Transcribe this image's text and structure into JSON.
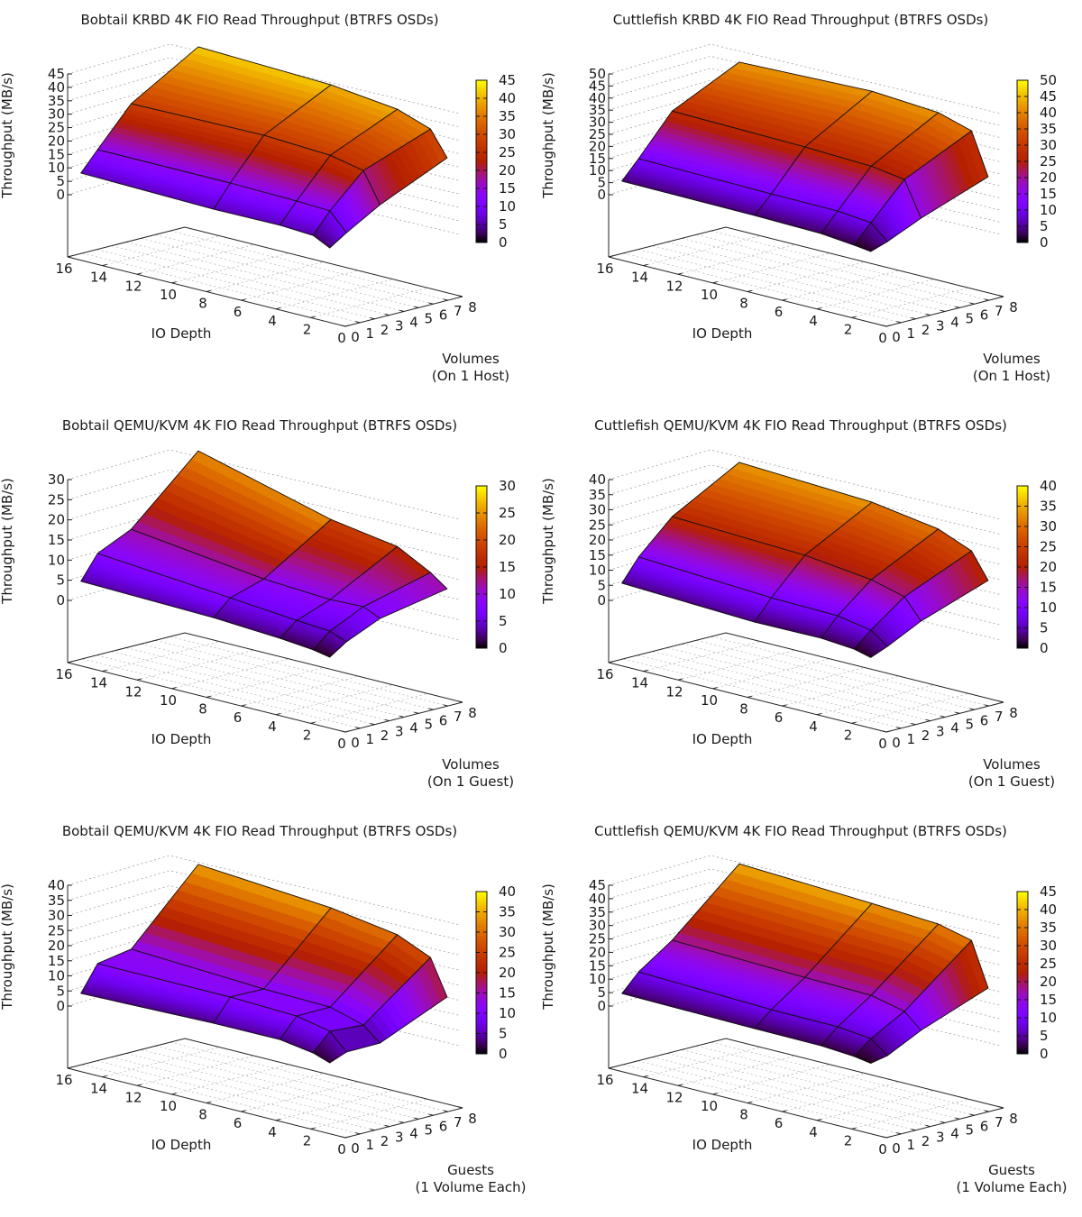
{
  "chart_data": [
    {
      "type": "surface3d",
      "title": "Bobtail KRBD 4K FIO Read Throughput (BTRFS OSDs)",
      "xlabel": "IO Depth",
      "ylabel": "Volumes\n(On 1 Host)",
      "zlabel": "Throughput (MB/s)",
      "x_ticks": [
        "16",
        "14",
        "12",
        "10",
        "8",
        "6",
        "4",
        "2",
        "0"
      ],
      "y_ticks": [
        "0",
        "1",
        "2",
        "3",
        "4",
        "5",
        "6",
        "7",
        "8"
      ],
      "z_ticks": [
        "0",
        "5",
        "10",
        "15",
        "20",
        "25",
        "30",
        "35",
        "40",
        "45"
      ],
      "cb_ticks": [
        "0",
        "5",
        "10",
        "15",
        "20",
        "25",
        "30",
        "35",
        "40",
        "45"
      ],
      "zlim": [
        0,
        45
      ],
      "io_depth": [
        16,
        8,
        4,
        2,
        1
      ],
      "volumes": [
        1,
        2,
        4,
        8
      ],
      "z": [
        [
          6.5,
          5.4,
          5.6,
          4.9,
          1.8
        ],
        [
          13.7,
          13.6,
          13.1,
          12.5,
          5.9
        ],
        [
          27.7,
          28.3,
          27.0,
          24.4,
          13.2
        ],
        [
          42.6,
          40.8,
          37.9,
          33.6,
          24.4
        ]
      ]
    },
    {
      "type": "surface3d",
      "title": "Cuttlefish KRBD 4K FIO Read Throughput (BTRFS OSDs)",
      "xlabel": "IO Depth",
      "ylabel": "Volumes\n(On 1 Host)",
      "zlabel": "Throughput (MB/s)",
      "x_ticks": [
        "16",
        "14",
        "12",
        "10",
        "8",
        "6",
        "4",
        "2",
        "0"
      ],
      "y_ticks": [
        "0",
        "1",
        "2",
        "3",
        "4",
        "5",
        "6",
        "7",
        "8"
      ],
      "z_ticks": [
        "0",
        "5",
        "10",
        "15",
        "20",
        "25",
        "30",
        "35",
        "40",
        "45",
        "50"
      ],
      "cb_ticks": [
        "0",
        "5",
        "10",
        "15",
        "20",
        "25",
        "30",
        "35",
        "40",
        "45",
        "50"
      ],
      "zlim": [
        0,
        50
      ],
      "io_depth": [
        16,
        8,
        4,
        2,
        1
      ],
      "volumes": [
        1,
        2,
        4,
        8
      ],
      "z": [
        [
          3.9,
          3.4,
          2.8,
          1.4,
          0.5
        ],
        [
          11.5,
          10.6,
          10.4,
          9.0,
          2.9
        ],
        [
          27.7,
          26.6,
          25.5,
          23.4,
          9.1
        ],
        [
          41.0,
          42.7,
          40.7,
          36.6,
          19.3
        ]
      ]
    },
    {
      "type": "surface3d",
      "title": "Bobtail QEMU/KVM 4K FIO Read Throughput (BTRFS OSDs)",
      "xlabel": "IO Depth",
      "ylabel": "Volumes\n(On 1 Guest)",
      "zlabel": "Throughput (MB/s)",
      "x_ticks": [
        "16",
        "14",
        "12",
        "10",
        "8",
        "6",
        "4",
        "2",
        "0"
      ],
      "y_ticks": [
        "0",
        "1",
        "2",
        "3",
        "4",
        "5",
        "6",
        "7",
        "8"
      ],
      "z_ticks": [
        "0",
        "5",
        "10",
        "15",
        "20",
        "25",
        "30"
      ],
      "cb_ticks": [
        "0",
        "5",
        "10",
        "15",
        "20",
        "25",
        "30"
      ],
      "zlim": [
        0,
        30
      ],
      "io_depth": [
        16,
        8,
        4,
        2,
        1
      ],
      "volumes": [
        1,
        2,
        4,
        8
      ],
      "z": [
        [
          3.7,
          2.9,
          1.9,
          1.1,
          0.3
        ],
        [
          9.6,
          6.8,
          5.3,
          4.7,
          3.1
        ],
        [
          13.5,
          9.4,
          8.4,
          8.7,
          6.8
        ],
        [
          28.8,
          20.0,
          17.4,
          13.0,
          10.0
        ]
      ]
    },
    {
      "type": "surface3d",
      "title": "Cuttlefish QEMU/KVM 4K FIO Read Throughput (BTRFS OSDs)",
      "xlabel": "IO Depth",
      "ylabel": "Volumes\n(On 1 Guest)",
      "zlabel": "Throughput (MB/s)",
      "x_ticks": [
        "16",
        "14",
        "12",
        "10",
        "8",
        "6",
        "4",
        "2",
        "0"
      ],
      "y_ticks": [
        "0",
        "1",
        "2",
        "3",
        "4",
        "5",
        "6",
        "7",
        "8"
      ],
      "z_ticks": [
        "0",
        "5",
        "10",
        "15",
        "20",
        "25",
        "30",
        "35",
        "40"
      ],
      "cb_ticks": [
        "0",
        "5",
        "10",
        "15",
        "20",
        "25",
        "30",
        "35",
        "40"
      ],
      "zlim": [
        0,
        40
      ],
      "io_depth": [
        16,
        8,
        4,
        2,
        1
      ],
      "volumes": [
        1,
        2,
        4,
        8
      ],
      "z": [
        [
          4.3,
          2.4,
          2.6,
          1.7,
          0.3
        ],
        [
          11.6,
          9.1,
          8.6,
          6.6,
          2.6
        ],
        [
          22.2,
          20.4,
          17.8,
          14.9,
          8.2
        ],
        [
          34.6,
          32.4,
          29.0,
          24.5,
          16.1
        ]
      ]
    },
    {
      "type": "surface3d",
      "title": "Bobtail QEMU/KVM 4K FIO Read Throughput (BTRFS OSDs)",
      "xlabel": "IO Depth",
      "ylabel": "Guests\n(1 Volume Each)",
      "zlabel": "Throughput (MB/s)",
      "x_ticks": [
        "16",
        "14",
        "12",
        "10",
        "8",
        "6",
        "4",
        "2",
        "0"
      ],
      "y_ticks": [
        "0",
        "1",
        "2",
        "3",
        "4",
        "5",
        "6",
        "7",
        "8"
      ],
      "z_ticks": [
        "0",
        "5",
        "10",
        "15",
        "20",
        "25",
        "30",
        "35",
        "40"
      ],
      "cb_ticks": [
        "0",
        "5",
        "10",
        "15",
        "20",
        "25",
        "30",
        "35",
        "40"
      ],
      "zlim": [
        0,
        40
      ],
      "io_depth": [
        16,
        8,
        4,
        2,
        1
      ],
      "volumes": [
        1,
        2,
        4,
        8
      ],
      "z": [
        [
          2.8,
          3.9,
          4.0,
          2.3,
          0.4
        ],
        [
          11.3,
          11.2,
          10.4,
          8.1,
          2.6
        ],
        [
          13.3,
          11.1,
          10.6,
          7.4,
          2.8
        ],
        [
          35.8,
          32.4,
          29.0,
          24.2,
          12.5
        ]
      ]
    },
    {
      "type": "surface3d",
      "title": "Cuttlefish QEMU/KVM 4K FIO Read Throughput (BTRFS OSDs)",
      "xlabel": "IO Depth",
      "ylabel": "Guests\n(1 Volume Each)",
      "zlabel": "Throughput (MB/s)",
      "x_ticks": [
        "16",
        "14",
        "12",
        "10",
        "8",
        "6",
        "4",
        "2",
        "0"
      ],
      "y_ticks": [
        "0",
        "1",
        "2",
        "3",
        "4",
        "5",
        "6",
        "7",
        "8"
      ],
      "z_ticks": [
        "0",
        "5",
        "10",
        "15",
        "20",
        "25",
        "30",
        "35",
        "40",
        "45"
      ],
      "cb_ticks": [
        "0",
        "5",
        "10",
        "15",
        "20",
        "25",
        "30",
        "35",
        "40",
        "45"
      ],
      "zlim": [
        0,
        45
      ],
      "io_depth": [
        16,
        8,
        4,
        2,
        1
      ],
      "volumes": [
        1,
        2,
        4,
        8
      ],
      "z": [
        [
          3.1,
          2.4,
          2.2,
          1.3,
          0.3
        ],
        [
          9.6,
          7.9,
          7.7,
          6.4,
          1.6
        ],
        [
          18.3,
          16.8,
          16.3,
          13.4,
          7.9
        ],
        [
          40.5,
          38.1,
          36.6,
          33.6,
          17.4
        ]
      ]
    }
  ]
}
